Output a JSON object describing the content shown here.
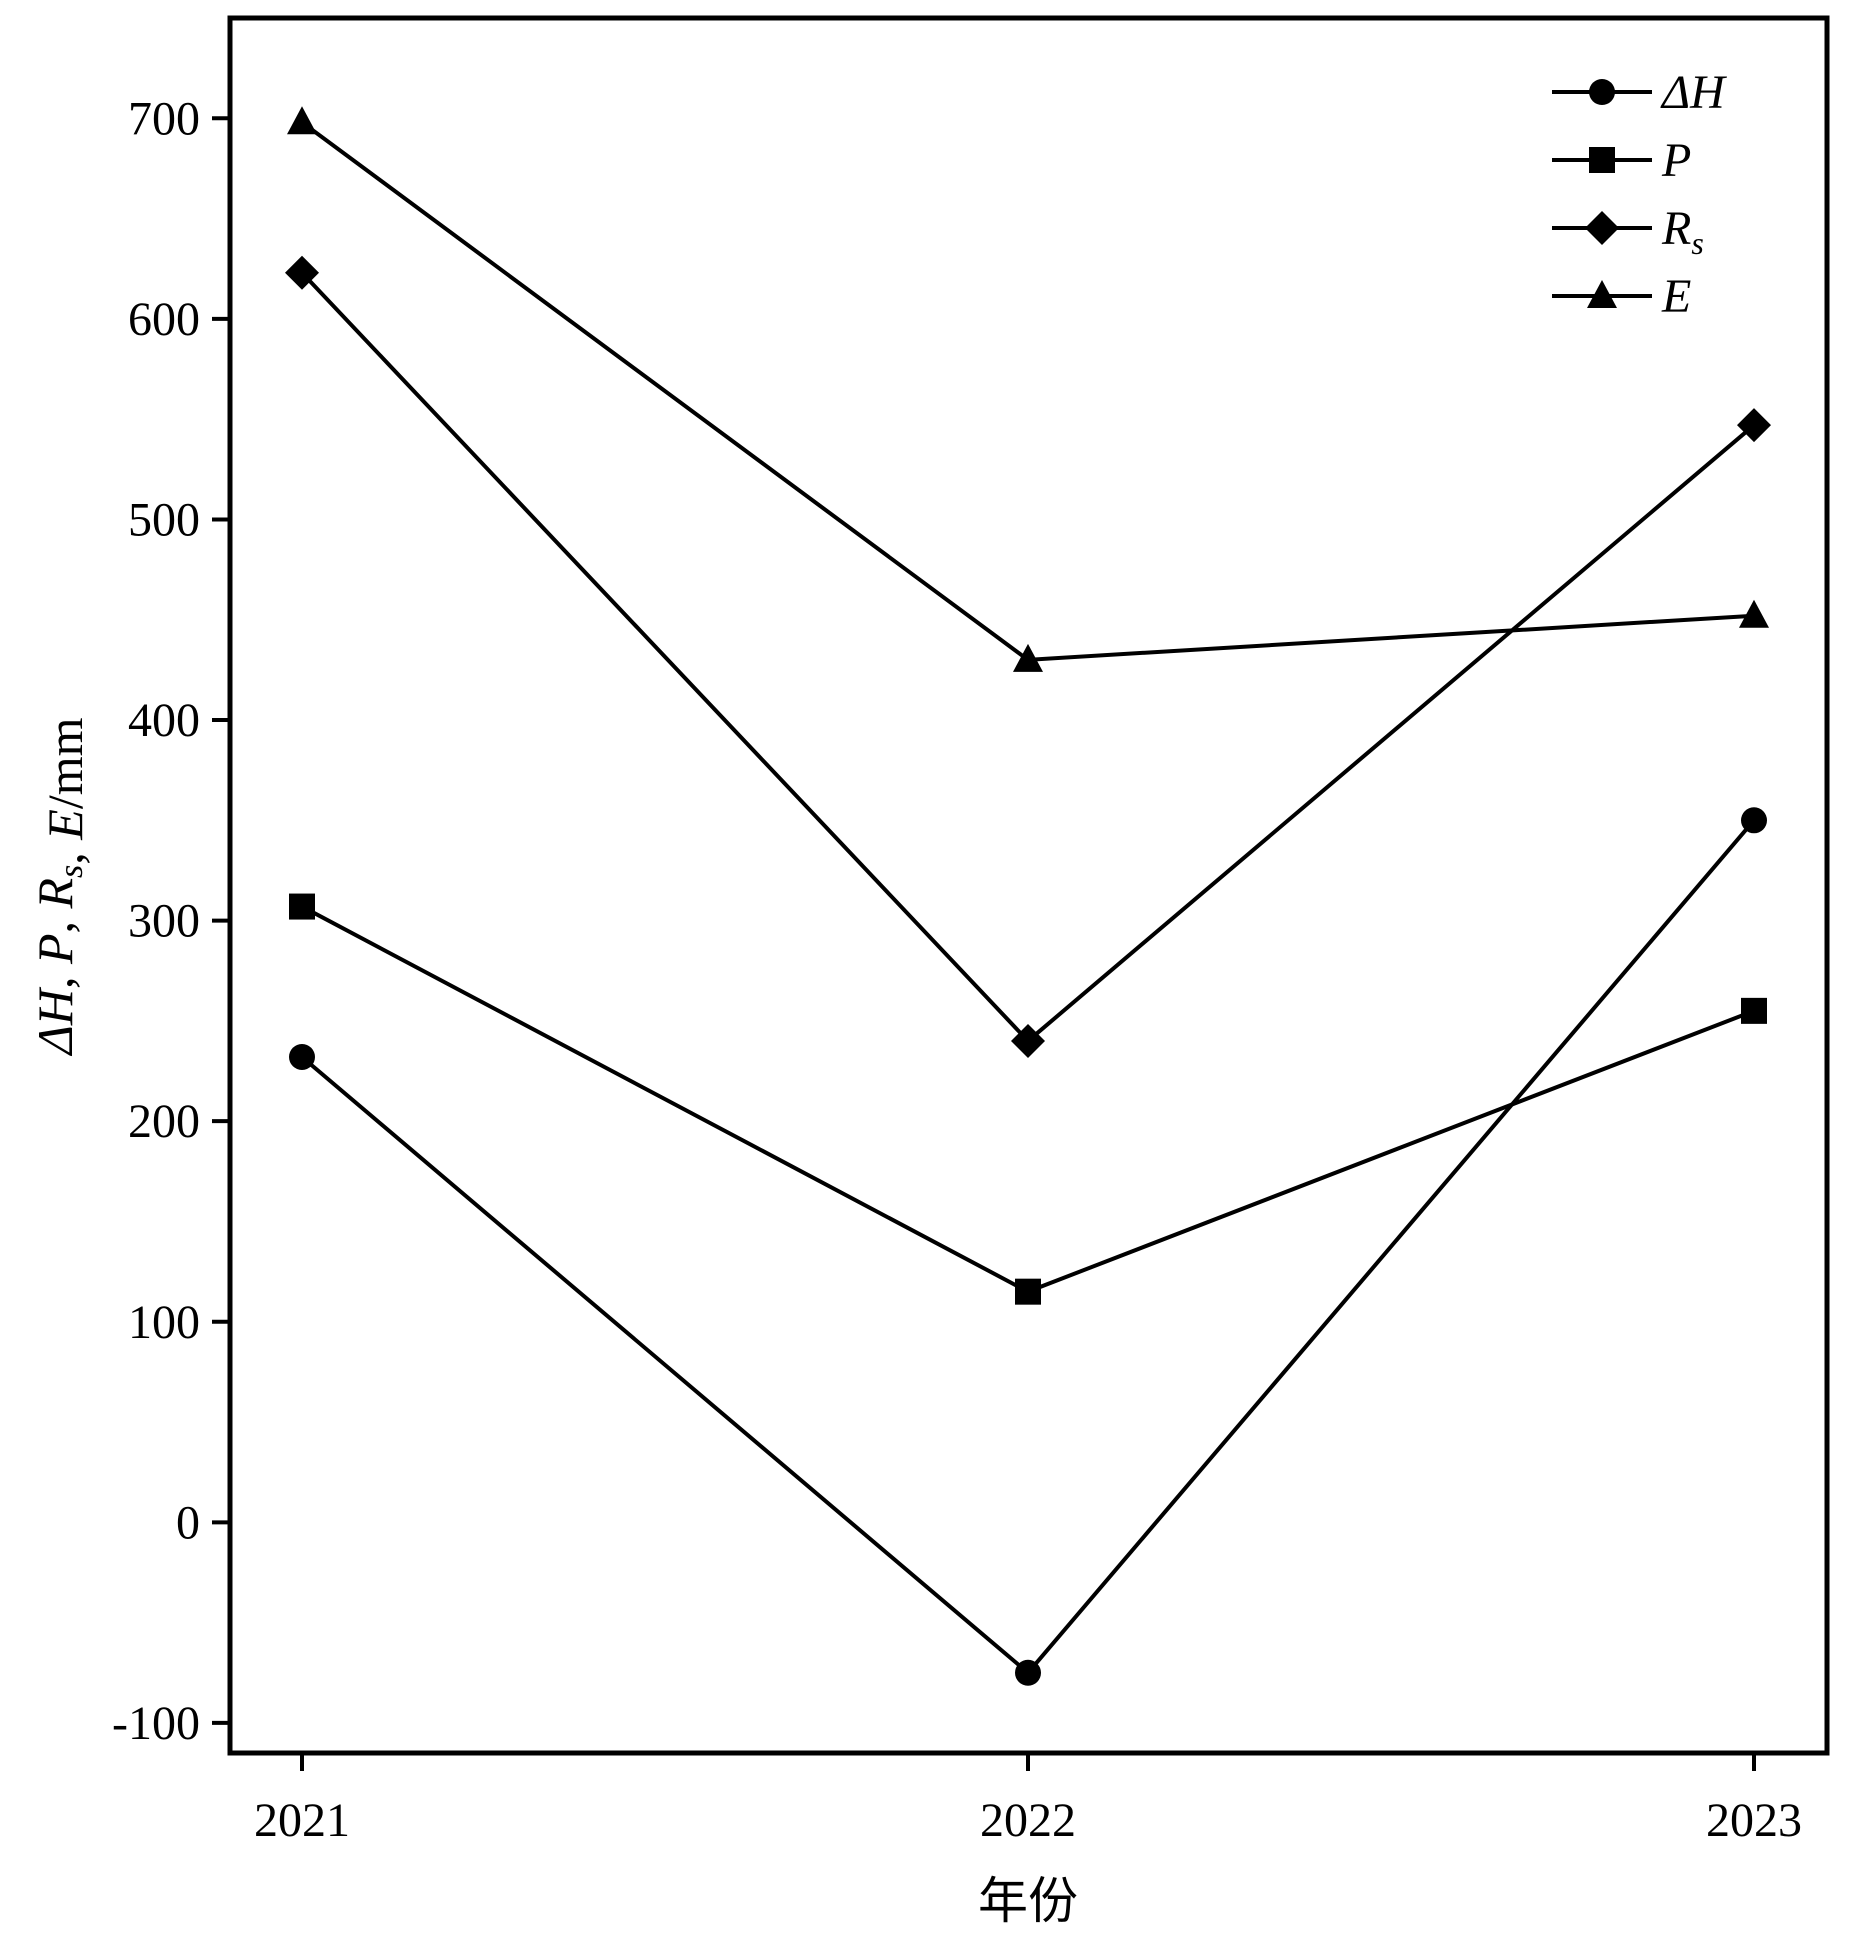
{
  "chart_data": {
    "type": "line",
    "categories": [
      "2021",
      "2022",
      "2023"
    ],
    "xlabel": "年份",
    "ylabel": "ΔH, P, Rs, E/mm",
    "ylim": [
      -115,
      750
    ],
    "yticks": [
      -100,
      0,
      100,
      200,
      300,
      400,
      500,
      600,
      700
    ],
    "grid": false,
    "legend_position": "top-right",
    "series": [
      {
        "name": "ΔH",
        "marker": "circle",
        "values": [
          232,
          -75,
          350
        ]
      },
      {
        "name": "P",
        "marker": "square",
        "values": [
          307,
          115,
          255
        ]
      },
      {
        "name": "Rs",
        "marker": "diamond",
        "values": [
          623,
          240,
          547
        ]
      },
      {
        "name": "E",
        "marker": "triangle",
        "values": [
          698,
          430,
          452
        ]
      }
    ],
    "line_color": "#000000"
  }
}
